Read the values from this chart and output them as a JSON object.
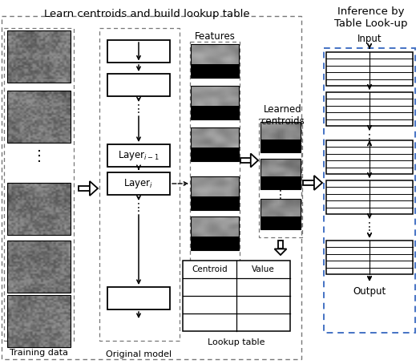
{
  "title_left": "Learn centroids and build lookup table",
  "title_right": "Inference by\nTable Look-up",
  "label_training": "Training data",
  "label_original": "Original model",
  "label_features": "Features",
  "label_centroids": "Learned\ncentroids",
  "label_lookup": "Lookup table",
  "label_input": "Input",
  "label_output": "Output",
  "col_centroid": "Centroid",
  "col_value": "Value",
  "bg_color": "#ffffff",
  "fig_width": 5.24,
  "fig_height": 4.54,
  "dpi": 100
}
